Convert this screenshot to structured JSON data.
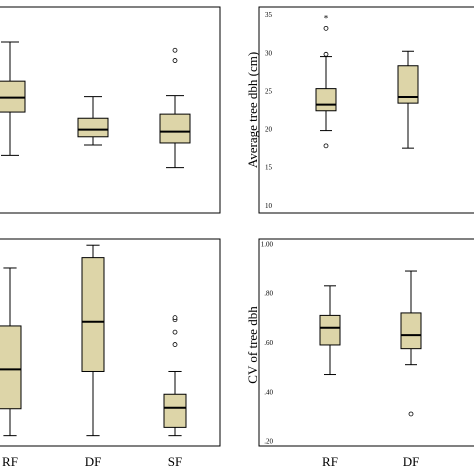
{
  "chart_data": [
    {
      "panel": "top-left",
      "type": "box",
      "categories": [
        "RF",
        "DF",
        "SF"
      ],
      "boxes": [
        {
          "whisker_low": 0.28,
          "q1": 0.49,
          "median": 0.56,
          "q3": 0.64,
          "whisker_high": 0.83
        },
        {
          "whisker_low": 0.33,
          "q1": 0.37,
          "median": 0.405,
          "q3": 0.46,
          "whisker_high": 0.565
        },
        {
          "whisker_low": 0.22,
          "q1": 0.34,
          "median": 0.395,
          "q3": 0.48,
          "whisker_high": 0.57
        }
      ],
      "outliers": [
        [],
        [],
        [
          {
            "y": 0.74,
            "symbol": "circle"
          },
          {
            "y": 0.79,
            "symbol": "circle"
          }
        ]
      ],
      "ylim": [
        0,
        1
      ],
      "yticks": [],
      "ylabel": "",
      "xlabels_shown": false
    },
    {
      "panel": "top-right",
      "type": "box",
      "categories": [
        "RF",
        "DF"
      ],
      "boxes": [
        {
          "whisker_low": 19.8,
          "q1": 22.4,
          "median": 23.2,
          "q3": 25.3,
          "whisker_high": 29.5
        },
        {
          "whisker_low": 17.5,
          "q1": 23.4,
          "median": 24.2,
          "q3": 28.3,
          "whisker_high": 30.2
        }
      ],
      "outliers": [
        [
          {
            "y": 17.8,
            "symbol": "circle"
          },
          {
            "y": 29.8,
            "symbol": "circle"
          },
          {
            "y": 33.2,
            "symbol": "circle"
          },
          {
            "y": 34.6,
            "symbol": "star"
          }
        ],
        []
      ],
      "ylim": [
        9,
        36
      ],
      "yticks": [
        "10",
        "15",
        "20",
        "25",
        "30",
        "35"
      ],
      "ylabel": "Average tree dbh (cm)",
      "xlabels_shown": false
    },
    {
      "panel": "bottom-left",
      "type": "box",
      "categories": [
        "RF",
        "DF",
        "SF"
      ],
      "boxes": [
        {
          "whisker_low": 0.05,
          "q1": 0.18,
          "median": 0.37,
          "q3": 0.58,
          "whisker_high": 0.86
        },
        {
          "whisker_low": 0.05,
          "q1": 0.36,
          "median": 0.6,
          "q3": 0.91,
          "whisker_high": 0.97
        },
        {
          "whisker_low": 0.05,
          "q1": 0.09,
          "median": 0.185,
          "q3": 0.25,
          "whisker_high": 0.36
        }
      ],
      "outliers": [
        [],
        [],
        [
          {
            "y": 0.49,
            "symbol": "circle"
          },
          {
            "y": 0.55,
            "symbol": "circle"
          },
          {
            "y": 0.61,
            "symbol": "circle"
          },
          {
            "y": 0.62,
            "symbol": "circle"
          }
        ]
      ],
      "ylim": [
        0,
        1
      ],
      "yticks": [],
      "ylabel": "",
      "xlabels_shown": true
    },
    {
      "panel": "bottom-right",
      "type": "box",
      "categories": [
        "RF",
        "DF"
      ],
      "boxes": [
        {
          "whisker_low": 0.47,
          "q1": 0.59,
          "median": 0.66,
          "q3": 0.71,
          "whisker_high": 0.83
        },
        {
          "whisker_low": 0.51,
          "q1": 0.575,
          "median": 0.63,
          "q3": 0.72,
          "whisker_high": 0.89
        }
      ],
      "outliers": [
        [],
        [
          {
            "y": 0.31,
            "symbol": "circle"
          }
        ]
      ],
      "ylim": [
        0.18,
        1.02
      ],
      "yticks": [
        ".20",
        ".40",
        ".60",
        ".80",
        "1.00"
      ],
      "ylabel": "CV of tree dbh",
      "xlabels_shown": true
    }
  ]
}
